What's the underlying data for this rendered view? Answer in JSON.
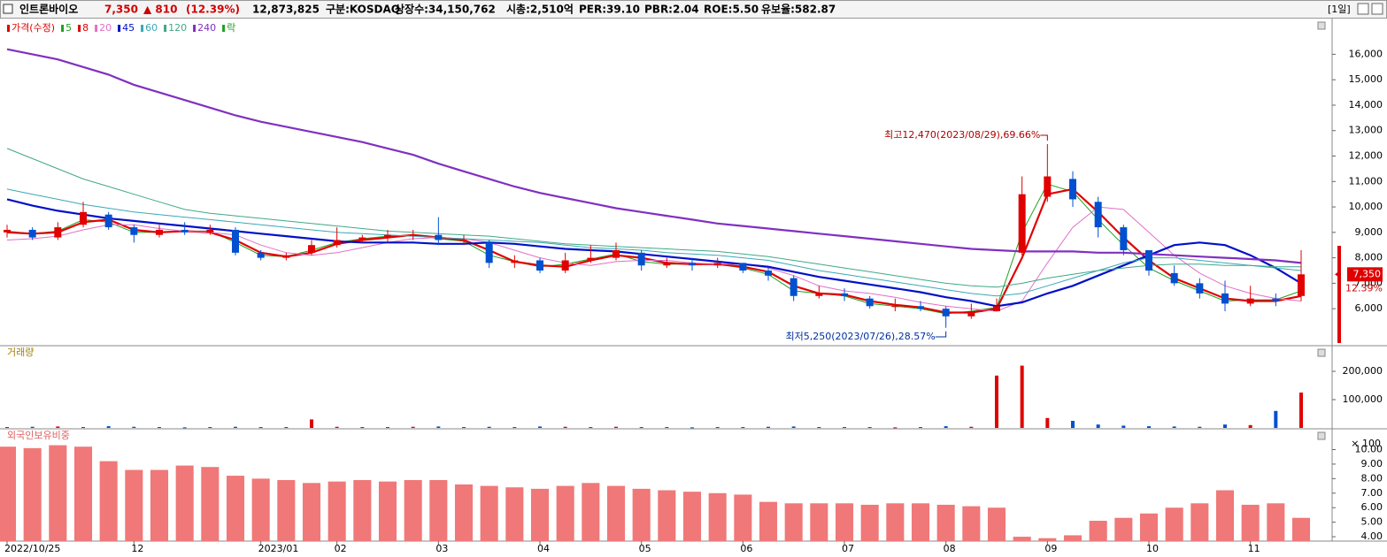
{
  "header": {
    "name": "인트론바이오",
    "price": "7,350",
    "change": "▲ 810",
    "change_pct": "(12.39%)",
    "volume": "12,873,825",
    "market": "구분:KOSDAQ",
    "shares": "상장수:34,150,762",
    "mcap": "시총:2,510억",
    "per": "PER:39.10",
    "pbr": "PBR:2.04",
    "roe": "ROE:5.50",
    "reserve": "유보율:582.87",
    "period": "[1일]"
  },
  "chart_data": [
    {
      "type": "candlestick",
      "name": "가격(수정)",
      "up_color": "#e00000",
      "down_color": "#0050d0",
      "open": [
        9000,
        9100,
        8800,
        9300,
        9700,
        9200,
        8900,
        9100,
        9000,
        9100,
        8200,
        8000,
        8200,
        8500,
        8700,
        8800,
        8900,
        8900,
        8700,
        8600,
        7800,
        7900,
        7500,
        7900,
        8000,
        8200,
        7700,
        7800,
        7700,
        7800,
        7500,
        7200,
        6500,
        6600,
        6400,
        6100,
        6100,
        6000,
        5700,
        5900,
        8200,
        10400,
        11100,
        10200,
        9200,
        8300,
        7400,
        7000,
        6600,
        6200,
        6400,
        6500
      ],
      "high": [
        9300,
        9200,
        9400,
        10200,
        9800,
        9300,
        9300,
        9400,
        9300,
        9200,
        8300,
        8200,
        8700,
        9200,
        8900,
        9100,
        9100,
        9600,
        8900,
        8700,
        8100,
        8000,
        8200,
        8500,
        8600,
        8300,
        8000,
        8000,
        8000,
        7800,
        7600,
        7300,
        6900,
        6800,
        6500,
        6400,
        6300,
        6100,
        6200,
        6400,
        11200,
        12470,
        11400,
        10400,
        9300,
        8300,
        7700,
        7200,
        7100,
        6900,
        6600,
        8300
      ],
      "low": [
        8800,
        8700,
        8700,
        9200,
        9100,
        8600,
        8800,
        8900,
        8900,
        8100,
        7900,
        7900,
        8100,
        8400,
        8600,
        8600,
        8700,
        8500,
        8500,
        7600,
        7600,
        7400,
        7400,
        7800,
        7900,
        7500,
        7600,
        7500,
        7600,
        7400,
        7100,
        6300,
        6400,
        6300,
        6000,
        5900,
        5900,
        5250,
        5600,
        5900,
        8100,
        10200,
        10000,
        8800,
        8100,
        7300,
        6900,
        6400,
        5900,
        6100,
        6100,
        6300
      ],
      "close": [
        9100,
        8800,
        9200,
        9800,
        9200,
        8900,
        9100,
        9000,
        9100,
        8200,
        8000,
        8100,
        8500,
        8700,
        8800,
        8900,
        8900,
        8700,
        8700,
        7800,
        7900,
        7500,
        7900,
        8000,
        8300,
        7700,
        7800,
        7700,
        7800,
        7500,
        7300,
        6500,
        6600,
        6500,
        6100,
        6100,
        6000,
        5700,
        5900,
        6100,
        10500,
        11200,
        10300,
        9200,
        8300,
        7500,
        7000,
        6600,
        6200,
        6400,
        6300,
        7350
      ],
      "series": [
        {
          "name": "5",
          "color": "#20a020",
          "width": 1,
          "values": [
            9050,
            8950,
            9050,
            9500,
            9400,
            9000,
            9000,
            9050,
            9050,
            8600,
            8100,
            8050,
            8300,
            8600,
            8750,
            8850,
            8900,
            8750,
            8650,
            8100,
            7850,
            7650,
            7750,
            7950,
            8150,
            7850,
            7750,
            7750,
            7750,
            7600,
            7350,
            6700,
            6600,
            6500,
            6200,
            6100,
            6000,
            5800,
            5900,
            6050,
            9000,
            10900,
            10600,
            9500,
            8500,
            7600,
            7100,
            6700,
            6300,
            6350,
            6350,
            6700
          ]
        },
        {
          "name": "8",
          "color": "#e00000",
          "width": 2.2,
          "values": [
            9000,
            8950,
            9000,
            9400,
            9500,
            9100,
            9000,
            9050,
            9000,
            8700,
            8200,
            8050,
            8200,
            8550,
            8700,
            8800,
            8900,
            8800,
            8700,
            8300,
            7850,
            7700,
            7650,
            7900,
            8100,
            8000,
            7800,
            7750,
            7750,
            7650,
            7450,
            6900,
            6600,
            6550,
            6300,
            6150,
            6050,
            5850,
            5850,
            6000,
            8000,
            10500,
            10700,
            9800,
            8800,
            7900,
            7200,
            6800,
            6400,
            6300,
            6300,
            6500
          ]
        },
        {
          "name": "20",
          "color": "#e070c8",
          "width": 1,
          "values": [
            8700,
            8750,
            8850,
            9100,
            9300,
            9300,
            9150,
            9050,
            9000,
            8900,
            8500,
            8200,
            8100,
            8200,
            8400,
            8600,
            8750,
            8800,
            8750,
            8600,
            8300,
            8000,
            7800,
            7700,
            7850,
            7900,
            7900,
            7800,
            7750,
            7750,
            7600,
            7300,
            6900,
            6700,
            6600,
            6450,
            6250,
            6100,
            6000,
            5900,
            6300,
            7800,
            9200,
            10000,
            9900,
            9000,
            8100,
            7400,
            6900,
            6600,
            6400,
            6300
          ]
        },
        {
          "name": "45",
          "color": "#0010c8",
          "width": 2.2,
          "values": [
            10300,
            10050,
            9850,
            9700,
            9550,
            9450,
            9350,
            9250,
            9150,
            9050,
            8950,
            8850,
            8750,
            8650,
            8600,
            8600,
            8600,
            8550,
            8550,
            8600,
            8550,
            8450,
            8350,
            8300,
            8250,
            8150,
            8050,
            7950,
            7850,
            7750,
            7650,
            7450,
            7250,
            7100,
            6950,
            6800,
            6650,
            6450,
            6300,
            6100,
            6250,
            6600,
            6900,
            7300,
            7700,
            8100,
            8500,
            8600,
            8500,
            8100,
            7600,
            7000
          ]
        },
        {
          "name": "60",
          "color": "#3aa8b8",
          "width": 1,
          "values": [
            10700,
            10500,
            10300,
            10100,
            9950,
            9800,
            9700,
            9600,
            9500,
            9400,
            9300,
            9200,
            9100,
            9000,
            8950,
            8900,
            8850,
            8800,
            8750,
            8700,
            8650,
            8600,
            8500,
            8400,
            8350,
            8300,
            8200,
            8150,
            8100,
            8000,
            7900,
            7700,
            7500,
            7350,
            7200,
            7050,
            6900,
            6750,
            6600,
            6500,
            6600,
            6900,
            7200,
            7500,
            7800,
            8000,
            8000,
            7900,
            7800,
            7700,
            7600,
            7500
          ]
        },
        {
          "name": "120",
          "color": "#40a888",
          "width": 1,
          "values": [
            12300,
            11900,
            11500,
            11100,
            10800,
            10500,
            10200,
            9900,
            9750,
            9650,
            9550,
            9450,
            9350,
            9250,
            9150,
            9050,
            9000,
            8950,
            8900,
            8850,
            8750,
            8650,
            8550,
            8500,
            8450,
            8400,
            8350,
            8300,
            8250,
            8150,
            8050,
            7900,
            7750,
            7600,
            7450,
            7300,
            7150,
            7000,
            6900,
            6850,
            7000,
            7200,
            7350,
            7500,
            7600,
            7700,
            7750,
            7750,
            7700,
            7700,
            7650,
            7650
          ]
        },
        {
          "name": "240",
          "color": "#8030c0",
          "width": 2.2,
          "values": [
            16200,
            16000,
            15800,
            15500,
            15200,
            14800,
            14500,
            14200,
            13900,
            13600,
            13350,
            13150,
            12950,
            12750,
            12550,
            12300,
            12050,
            11700,
            11400,
            11100,
            10800,
            10550,
            10350,
            10150,
            9950,
            9800,
            9650,
            9500,
            9350,
            9250,
            9150,
            9050,
            8950,
            8850,
            8750,
            8650,
            8550,
            8450,
            8350,
            8300,
            8250,
            8250,
            8250,
            8200,
            8200,
            8150,
            8100,
            8050,
            8000,
            7950,
            7900,
            7800
          ]
        }
      ],
      "legend_extra": "락",
      "legend_extra_color": "#20a020",
      "ylim": [
        4650,
        17300
      ],
      "yticks": [
        {
          "value": 6000,
          "label": "6,000"
        },
        {
          "value": 7000,
          "label": "7,000"
        },
        {
          "value": 8000,
          "label": "8,000"
        },
        {
          "value": 9000,
          "label": "9,000"
        },
        {
          "value": 10000,
          "label": "10,000"
        },
        {
          "value": 11000,
          "label": "11,000"
        },
        {
          "value": 12000,
          "label": "12,000"
        },
        {
          "value": 13000,
          "label": "13,000"
        },
        {
          "value": 14000,
          "label": "14,000"
        },
        {
          "value": 15000,
          "label": "15,000"
        },
        {
          "value": 16000,
          "label": "16,000"
        }
      ],
      "annotation_high": "최고12,470(2023/08/29),69.66%",
      "annotation_low": "최저5,250(2023/07/26),28.57%",
      "last_value_label": "7,350",
      "last_change_label": "12.39%"
    },
    {
      "type": "bar",
      "title": "거래량",
      "up_color": "#e00000",
      "down_color": "#0050d0",
      "values": [
        3000,
        4000,
        5000,
        3000,
        6000,
        4000,
        3000,
        2000,
        3000,
        4000,
        3000,
        3000,
        30000,
        4000,
        3000,
        3000,
        4000,
        5000,
        3000,
        4000,
        3000,
        5000,
        4000,
        3000,
        4000,
        3000,
        3000,
        2000,
        3000,
        3000,
        4000,
        5000,
        3000,
        3000,
        3000,
        2000,
        3000,
        6000,
        4000,
        185000,
        220000,
        35000,
        25000,
        12000,
        8000,
        6000,
        5000,
        4000,
        12000,
        10000,
        60000,
        125000
      ],
      "ylim": [
        0,
        250000
      ],
      "yticks": [
        {
          "value": 100000,
          "label": "100,000"
        },
        {
          "value": 200000,
          "label": "200,000"
        }
      ],
      "unit_label": "× 100"
    },
    {
      "type": "bar",
      "title": "외국인보유비중",
      "color": "#f07878",
      "categories": [
        "2022/10/25",
        null,
        null,
        null,
        null,
        "12",
        null,
        null,
        null,
        null,
        "2023/01",
        null,
        null,
        "02",
        null,
        null,
        null,
        "03",
        null,
        null,
        null,
        "04",
        null,
        null,
        null,
        "05",
        null,
        null,
        null,
        "06",
        null,
        null,
        null,
        "07",
        null,
        null,
        null,
        "08",
        null,
        null,
        null,
        "09",
        null,
        null,
        null,
        "10",
        null,
        null,
        null,
        "11",
        null,
        null
      ],
      "values": [
        10.2,
        10.1,
        10.3,
        10.2,
        9.2,
        8.6,
        8.6,
        8.9,
        8.8,
        8.2,
        8.0,
        7.9,
        7.7,
        7.8,
        7.9,
        7.8,
        7.9,
        7.9,
        7.6,
        7.5,
        7.4,
        7.3,
        7.5,
        7.7,
        7.5,
        7.3,
        7.2,
        7.1,
        7.0,
        6.9,
        6.4,
        6.3,
        6.3,
        6.3,
        6.2,
        6.3,
        6.3,
        6.2,
        6.1,
        6.0,
        4.0,
        3.9,
        4.1,
        5.1,
        5.3,
        5.6,
        6.0,
        6.3,
        7.2,
        6.2,
        6.3,
        5.3
      ],
      "ylim": [
        3.7,
        10.7
      ],
      "yticks": [
        {
          "value": 4,
          "label": "4.00"
        },
        {
          "value": 5,
          "label": "5.00"
        },
        {
          "value": 6,
          "label": "6.00"
        },
        {
          "value": 7,
          "label": "7.00"
        },
        {
          "value": 8,
          "label": "8.00"
        },
        {
          "value": 9,
          "label": "9.00"
        },
        {
          "value": 10,
          "label": "10.00"
        }
      ]
    }
  ]
}
